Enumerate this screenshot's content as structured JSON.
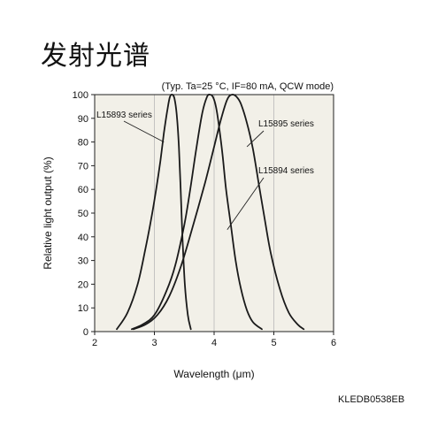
{
  "page_title": "发射光谱",
  "doc_code": "KLEDB0538EB",
  "chart_data": {
    "type": "line",
    "title": "",
    "conditions": "(Typ. Ta=25 °C, IF=80 mA, QCW mode)",
    "xlabel": "Wavelength (μm)",
    "ylabel": "Relative light output (%)",
    "xlim": [
      2,
      6
    ],
    "ylim": [
      0,
      100
    ],
    "xticks": [
      "2",
      "3",
      "4",
      "5",
      "6"
    ],
    "yticks": [
      "0",
      "10",
      "20",
      "30",
      "40",
      "50",
      "60",
      "70",
      "80",
      "90",
      "100"
    ],
    "grid": true,
    "series": [
      {
        "name": "L15893 series",
        "x": [
          2.37,
          2.55,
          2.72,
          2.85,
          2.95,
          3.03,
          3.1,
          3.16,
          3.22,
          3.26,
          3.3,
          3.34,
          3.38,
          3.41,
          3.44,
          3.47,
          3.51,
          3.56,
          3.61
        ],
        "y": [
          1,
          8,
          20,
          35,
          48,
          60,
          72,
          84,
          94,
          99,
          100,
          98,
          90,
          78,
          60,
          40,
          20,
          7,
          1
        ]
      },
      {
        "name": "L15895 series",
        "x": [
          2.62,
          2.8,
          3.0,
          3.2,
          3.35,
          3.5,
          3.6,
          3.7,
          3.8,
          3.88,
          3.93,
          3.98,
          4.03,
          4.08,
          4.14,
          4.2,
          4.28,
          4.36,
          4.45,
          4.55,
          4.65,
          4.8
        ],
        "y": [
          1,
          3,
          7,
          17,
          28,
          45,
          60,
          77,
          92,
          99,
          100,
          99,
          95,
          87,
          75,
          60,
          45,
          30,
          18,
          9,
          4,
          1
        ]
      },
      {
        "name": "L15894 series",
        "x": [
          2.65,
          2.85,
          3.05,
          3.25,
          3.45,
          3.65,
          3.85,
          4.0,
          4.12,
          4.22,
          4.3,
          4.38,
          4.45,
          4.55,
          4.65,
          4.75,
          4.85,
          4.95,
          5.1,
          5.25,
          5.4,
          5.5
        ],
        "y": [
          1,
          3,
          7,
          15,
          28,
          45,
          63,
          78,
          90,
          98,
          100,
          99,
          96,
          88,
          77,
          62,
          47,
          33,
          18,
          8,
          3,
          1
        ]
      }
    ],
    "annotations": [
      {
        "label": "L15893 series",
        "series": 0,
        "anchor_x": 3.16,
        "anchor_y": 80
      },
      {
        "label": "L15895 series",
        "series": 1,
        "anchor_x": 4.55,
        "anchor_y": 78
      },
      {
        "label": "L15894 series",
        "series": 2,
        "anchor_x": 4.22,
        "anchor_y": 43
      }
    ]
  }
}
